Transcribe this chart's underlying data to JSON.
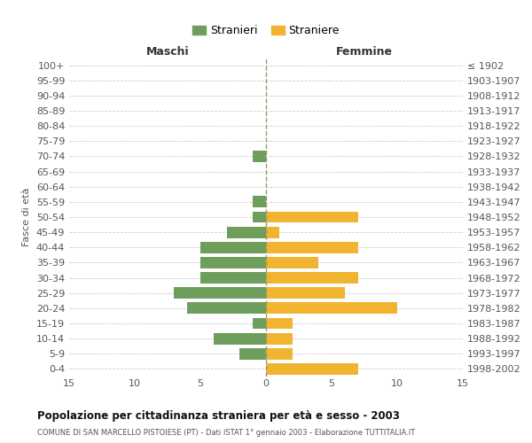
{
  "age_groups": [
    "100+",
    "95-99",
    "90-94",
    "85-89",
    "80-84",
    "75-79",
    "70-74",
    "65-69",
    "60-64",
    "55-59",
    "50-54",
    "45-49",
    "40-44",
    "35-39",
    "30-34",
    "25-29",
    "20-24",
    "15-19",
    "10-14",
    "5-9",
    "0-4"
  ],
  "birth_years": [
    "≤ 1902",
    "1903-1907",
    "1908-1912",
    "1913-1917",
    "1918-1922",
    "1923-1927",
    "1928-1932",
    "1933-1937",
    "1938-1942",
    "1943-1947",
    "1948-1952",
    "1953-1957",
    "1958-1962",
    "1963-1967",
    "1968-1972",
    "1973-1977",
    "1978-1982",
    "1983-1987",
    "1988-1992",
    "1993-1997",
    "1998-2002"
  ],
  "maschi": [
    0,
    0,
    0,
    0,
    0,
    0,
    1,
    0,
    0,
    1,
    1,
    3,
    5,
    5,
    5,
    7,
    6,
    1,
    4,
    2,
    0
  ],
  "femmine": [
    0,
    0,
    0,
    0,
    0,
    0,
    0,
    0,
    0,
    0,
    7,
    1,
    7,
    4,
    7,
    6,
    10,
    2,
    2,
    2,
    7
  ],
  "maschi_color": "#6d9e5b",
  "femmine_color": "#f0b430",
  "title": "Popolazione per cittadinanza straniera per età e sesso - 2003",
  "subtitle": "COMUNE DI SAN MARCELLO PISTOIESE (PT) - Dati ISTAT 1° gennaio 2003 - Elaborazione TUTTITALIA.IT",
  "ylabel_left": "Fasce di età",
  "xlabel_left": "Maschi",
  "xlabel_right": "Femmine",
  "legend_maschi": "Stranieri",
  "legend_femmine": "Straniere",
  "xlim": 15,
  "bg_color": "#ffffff",
  "grid_color": "#cccccc",
  "bar_height": 0.75
}
